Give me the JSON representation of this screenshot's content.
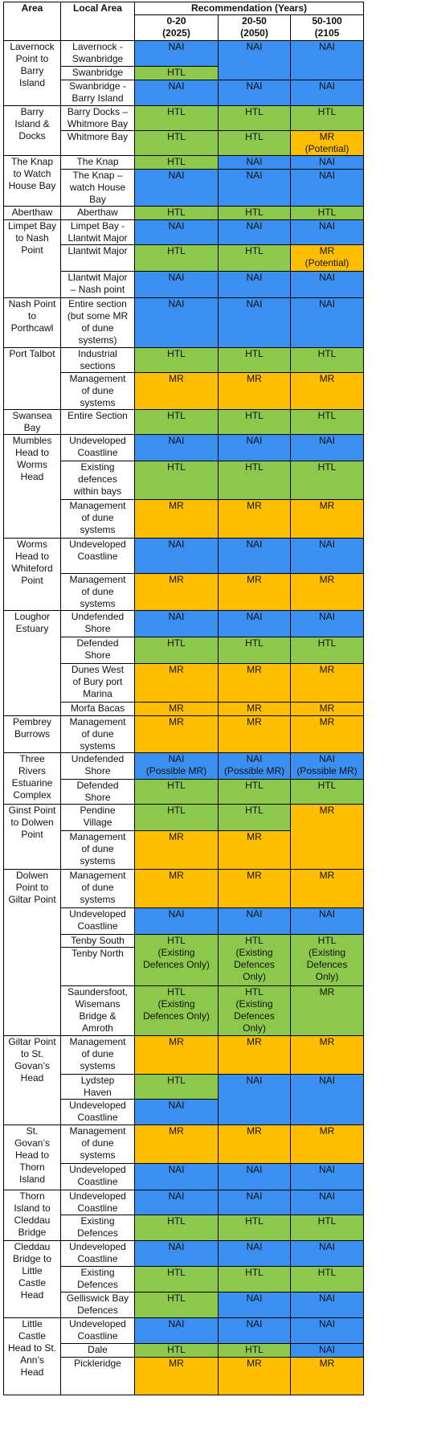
{
  "headers": {
    "area": "Area",
    "local": "Local Area",
    "recommendation": "Recommendation (Years)",
    "period1": "0-20\n(2025)",
    "period2": "20-50\n(2050)",
    "period3": "50-100\n(2105"
  },
  "colors": {
    "NAI": "#3a8ff0",
    "HTL": "#8cc84b",
    "MR": "#ffbf00"
  },
  "rows": [
    {
      "area": "Lavernock\nPoint to\nBarry\nIsland",
      "local": "Lavernock -\nSwanbridge",
      "c0": "NAI",
      "c1": "NAI",
      "c2": "NAI"
    },
    {
      "local": "Swanbridge",
      "c0": "HTL"
    },
    {
      "local": "Swanbridge -\nBarry Island",
      "c0": "NAI",
      "c1": "NAI",
      "c2": "NAI"
    },
    {
      "area": "Barry\nIsland &\nDocks",
      "local": "Barry Docks –\nWhitmore Bay",
      "c0": "HTL",
      "c1": "HTL",
      "c2": "HTL"
    },
    {
      "local": "Whitmore Bay",
      "c0": "HTL",
      "c1": "HTL",
      "c2": "MR\n(Potential)"
    },
    {
      "area": "The Knap\nto Watch\nHouse Bay",
      "local": "The Knap",
      "c0": "HTL",
      "c1": "NAI",
      "c2": "NAI"
    },
    {
      "local": "The Knap –\nwatch House\nBay",
      "c0": "NAI",
      "c1": "NAI",
      "c2": "NAI"
    },
    {
      "area": "Aberthaw",
      "local": "Aberthaw",
      "c0": "HTL",
      "c1": "HTL",
      "c2": "HTL"
    },
    {
      "area": "Limpet Bay\nto Nash\nPoint",
      "local": "Limpet Bay -\nLlantwit Major",
      "c0": "NAI",
      "c1": "NAI",
      "c2": "NAI"
    },
    {
      "local": "Llantwit Major",
      "c0": "HTL",
      "c1": "HTL",
      "c2": "MR\n(Potential)"
    },
    {
      "local": "Llantwit Major\n– Nash point",
      "c0": "NAI",
      "c1": "NAI",
      "c2": "NAI"
    },
    {
      "area": "Nash Point\nto\nPorthcawl",
      "local": "Entire section\n(but some MR\nof dune\nsystems)",
      "c0": "NAI",
      "c1": "NAI",
      "c2": "NAI"
    },
    {
      "area": "Port Talbot",
      "local": "Industrial\nsections",
      "c0": "HTL",
      "c1": "HTL",
      "c2": "HTL"
    },
    {
      "local": "Management\nof dune\nsystems",
      "c0": "MR",
      "c1": "MR",
      "c2": "MR"
    },
    {
      "area": "Swansea\nBay",
      "local": "Entire Section",
      "c0": "HTL",
      "c1": "HTL",
      "c2": "HTL"
    },
    {
      "area": "Mumbles\nHead to\nWorms\nHead",
      "local": "Undeveloped\nCoastline",
      "c0": "NAI",
      "c1": "NAI",
      "c2": "NAI"
    },
    {
      "local": "Existing\ndefences\nwithin bays",
      "c0": "HTL",
      "c1": "HTL",
      "c2": "HTL"
    },
    {
      "local": "Management\nof dune\nsystems",
      "c0": "MR",
      "c1": "MR",
      "c2": "MR"
    },
    {
      "area": "Worms\nHead to\nWhiteford\nPoint",
      "local": "Undeveloped\nCoastline",
      "c0": "NAI",
      "c1": "NAI",
      "c2": "NAI"
    },
    {
      "local": "Management\nof dune\nsystems",
      "c0": "MR",
      "c1": "MR",
      "c2": "MR"
    },
    {
      "area": "Loughor\nEstuary",
      "local": "Undefended\nShore",
      "c0": "NAI",
      "c1": "NAI",
      "c2": "NAI"
    },
    {
      "local": "Defended\nShore",
      "c0": "HTL",
      "c1": "HTL",
      "c2": "HTL"
    },
    {
      "local": "Dunes West\nof Bury port\nMarina",
      "c0": "MR",
      "c1": "MR",
      "c2": "MR"
    },
    {
      "local": "Morfa Bacas",
      "c0": "MR",
      "c1": "MR",
      "c2": "MR"
    },
    {
      "area": "Pembrey\nBurrows",
      "local": "Management\nof dune\nsystems",
      "c0": "MR",
      "c1": "MR",
      "c2": "MR"
    },
    {
      "area": "Three\nRivers\nEstuarine\nComplex",
      "local": "Undefended\nShore",
      "c0": "NAI\n(Possible MR)",
      "c1": "NAI\n(Possible MR)",
      "c2": "NAI\n(Possible MR)"
    },
    {
      "local": "Defended\nShore",
      "c0": "HTL",
      "c1": "HTL",
      "c2": "HTL"
    },
    {
      "area": "Ginst Point\nto Dolwen\nPoint",
      "local": "Pendine\nVillage",
      "c0": "HTL",
      "c1": "HTL",
      "c2": "MR"
    },
    {
      "local": "Management\nof dune\nsystems",
      "c0": "MR",
      "c1": "MR"
    },
    {
      "area": "Dolwen\nPoint to\nGiltar Point",
      "local": "Management\nof dune\nsystems",
      "c0": "MR",
      "c1": "MR",
      "c2": "MR"
    },
    {
      "local": "Undeveloped\nCoastline",
      "c0": "NAI",
      "c1": "NAI",
      "c2": "NAI"
    },
    {
      "local": "Tenby South",
      "c0": "HTL",
      "c1": "HTL",
      "c2": "HTL"
    },
    {
      "local": "Tenby North",
      "c0": "(Existing\nDefences Only)",
      "c1": "(Existing\nDefences\nOnly)",
      "c2": "(Existing\nDefences\nOnly)"
    },
    {
      "local": "Saundersfoot,\nWisemans\nBridge &\nAmroth",
      "c0": "HTL\n(Existing\nDefences Only)",
      "c1": "HTL\n(Existing\nDefences\nOnly)",
      "c2": "MR"
    },
    {
      "area": "Giltar Point\nto St.\nGovan’s\nHead",
      "local": "Management\nof dune\nsystems",
      "c0": "MR",
      "c1": "MR",
      "c2": "MR"
    },
    {
      "local": "Lydstep\nHaven",
      "c0": "HTL",
      "c1": "NAI",
      "c2": "NAI"
    },
    {
      "local": "Undeveloped\nCoastline",
      "c0": "NAI"
    },
    {
      "area": "St.\nGovan’s\nHead to\nThorn\nIsland",
      "local": "Management\nof dune\nsystems",
      "c0": "MR",
      "c1": "MR",
      "c2": "MR"
    },
    {
      "local": "Undeveloped\nCoastline",
      "c0": "NAI",
      "c1": "NAI",
      "c2": "NAI"
    },
    {
      "area": "Thorn\nIsland to\nCleddau\nBridge",
      "local": "Undeveloped\nCoastline",
      "c0": "NAI",
      "c1": "NAI",
      "c2": "NAI"
    },
    {
      "local": "Existing\nDefences",
      "c0": "HTL",
      "c1": "HTL",
      "c2": "HTL"
    },
    {
      "area": "Cleddau\nBridge to\nLittle\nCastle\nHead",
      "local": "Undeveloped\nCoastline",
      "c0": "NAI",
      "c1": "NAI",
      "c2": "NAI"
    },
    {
      "local": "Existing\nDefences",
      "c0": "HTL",
      "c1": "HTL",
      "c2": "HTL"
    },
    {
      "local": "Gelliswick Bay\nDefences",
      "c0": "HTL",
      "c1": "NAI",
      "c2": "NAI"
    },
    {
      "area": "Little\nCastle\nHead to St.\nAnn’s\nHead",
      "local": "Undeveloped\nCoastline",
      "c0": "NAI",
      "c1": "NAI",
      "c2": "NAI"
    },
    {
      "local": "Dale",
      "c0": "HTL",
      "c1": "HTL",
      "c2": "NAI"
    },
    {
      "local": "Pickleridge",
      "c0": "MR",
      "c1": "MR",
      "c2": "MR"
    }
  ]
}
